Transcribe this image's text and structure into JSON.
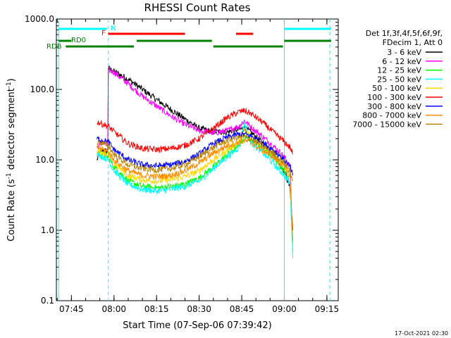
{
  "chart_data": {
    "type": "line",
    "title": "RHESSI Count Rates",
    "xlabel": "Start Time (07-Sep-06 07:39:42)",
    "ylabel_main": "Count Rate (s",
    "ylabel_sup": "-1",
    "ylabel_tail": " detector segment",
    "ylabel_sup2": "-1",
    "ylabel_end": ")",
    "y_scale": "log",
    "ylim": [
      0.1,
      1000.0
    ],
    "xlim": [
      "07:39:42",
      "09:19:00"
    ],
    "x_ticks": [
      "07:45",
      "08:00",
      "08:15",
      "08:30",
      "08:45",
      "09:00",
      "09:15"
    ],
    "y_ticks": [
      "0.1",
      "1.0",
      "10.0",
      "100.0",
      "1000.0"
    ],
    "legend_header": [
      "Det 1f,3f,4f,5f,6f,9f,",
      "FDecim 1, Att 0"
    ],
    "legend_position": "right",
    "timestamp": "17-Oct-2021 02:30",
    "series": [
      {
        "name": "3 - 6 keV",
        "color": "#000000",
        "x": [
          "07:54:00",
          "07:56:00",
          "07:57:30",
          "07:58:00",
          "08:00:00",
          "08:05:00",
          "08:10:00",
          "08:15:00",
          "08:20:00",
          "08:25:00",
          "08:30:00",
          "08:35:00",
          "08:40:00",
          "08:44:00",
          "08:46:00",
          "08:48:00",
          "08:52:00",
          "08:56:00",
          "09:00:00",
          "09:02:00",
          "09:03:00"
        ],
        "y": [
          10.0,
          14.0,
          13.0,
          200.0,
          180.0,
          140.0,
          100.0,
          72.0,
          52.0,
          38.0,
          28.0,
          25.0,
          25.0,
          27.0,
          28.0,
          25.0,
          18.0,
          12.0,
          7.0,
          4.0,
          1.0
        ]
      },
      {
        "name": "6 - 12 keV",
        "color": "#ff00ff",
        "x": [
          "07:54:00",
          "07:56:00",
          "07:57:30",
          "07:58:00",
          "08:00:00",
          "08:05:00",
          "08:10:00",
          "08:15:00",
          "08:20:00",
          "08:25:00",
          "08:30:00",
          "08:35:00",
          "08:40:00",
          "08:44:00",
          "08:46:00",
          "08:48:00",
          "08:52:00",
          "08:56:00",
          "09:00:00",
          "09:02:00",
          "09:03:00"
        ],
        "y": [
          15.0,
          18.0,
          16.0,
          190.0,
          175.0,
          120.0,
          80.0,
          58.0,
          42.0,
          32.0,
          26.0,
          24.0,
          26.0,
          30.0,
          36.0,
          30.0,
          22.0,
          16.0,
          11.0,
          8.0,
          0.6
        ]
      },
      {
        "name": "12 - 25 keV",
        "color": "#00ff00",
        "x": [
          "07:54:00",
          "07:56:00",
          "07:58:00",
          "08:00:00",
          "08:05:00",
          "08:10:00",
          "08:15:00",
          "08:20:00",
          "08:25:00",
          "08:30:00",
          "08:35:00",
          "08:40:00",
          "08:44:00",
          "08:46:00",
          "08:48:00",
          "08:52:00",
          "08:56:00",
          "09:00:00",
          "09:02:00",
          "09:03:00"
        ],
        "y": [
          13.0,
          12.0,
          11.0,
          8.0,
          5.0,
          4.2,
          4.0,
          4.2,
          4.5,
          5.5,
          8.0,
          12.0,
          16.0,
          22.0,
          20.0,
          15.0,
          11.0,
          7.0,
          5.0,
          0.5
        ]
      },
      {
        "name": "25 - 50 keV",
        "color": "#00ffff",
        "x": [
          "07:54:00",
          "07:56:00",
          "07:58:00",
          "08:00:00",
          "08:05:00",
          "08:10:00",
          "08:15:00",
          "08:20:00",
          "08:25:00",
          "08:30:00",
          "08:35:00",
          "08:40:00",
          "08:44:00",
          "08:46:00",
          "08:48:00",
          "08:52:00",
          "08:56:00",
          "09:00:00",
          "09:02:00",
          "09:03:00"
        ],
        "y": [
          12.0,
          11.0,
          10.0,
          7.0,
          4.5,
          3.8,
          3.6,
          3.8,
          4.2,
          5.0,
          7.5,
          11.0,
          15.0,
          34.0,
          18.0,
          13.0,
          9.0,
          6.0,
          4.5,
          0.4
        ]
      },
      {
        "name": "50 - 100 keV",
        "color": "#ffd700",
        "x": [
          "07:54:00",
          "07:56:00",
          "07:58:00",
          "08:00:00",
          "08:05:00",
          "08:10:00",
          "08:15:00",
          "08:20:00",
          "08:25:00",
          "08:30:00",
          "08:35:00",
          "08:40:00",
          "08:44:00",
          "08:46:00",
          "08:48:00",
          "08:52:00",
          "08:56:00",
          "09:00:00",
          "09:02:00",
          "09:03:00"
        ],
        "y": [
          14.0,
          13.0,
          12.0,
          9.0,
          6.0,
          5.2,
          5.0,
          5.2,
          5.8,
          7.0,
          10.0,
          14.0,
          18.0,
          26.0,
          22.0,
          16.0,
          12.0,
          8.0,
          6.0,
          0.6
        ]
      },
      {
        "name": "100 - 300 keV",
        "color": "#ff0000",
        "x": [
          "07:54:00",
          "07:56:00",
          "07:58:00",
          "08:00:00",
          "08:05:00",
          "08:10:00",
          "08:15:00",
          "08:20:00",
          "08:25:00",
          "08:30:00",
          "08:35:00",
          "08:40:00",
          "08:44:00",
          "08:46:00",
          "08:48:00",
          "08:52:00",
          "08:56:00",
          "09:00:00",
          "09:02:00",
          "09:03:00"
        ],
        "y": [
          35.0,
          32.0,
          30.0,
          25.0,
          17.0,
          14.5,
          14.0,
          14.5,
          16.0,
          20.0,
          28.0,
          40.0,
          48.0,
          50.0,
          46.0,
          35.0,
          25.0,
          18.0,
          15.0,
          12.0
        ]
      },
      {
        "name": "300 - 800 keV",
        "color": "#0000ff",
        "x": [
          "07:54:00",
          "07:56:00",
          "07:58:00",
          "08:00:00",
          "08:05:00",
          "08:10:00",
          "08:15:00",
          "08:20:00",
          "08:25:00",
          "08:30:00",
          "08:35:00",
          "08:40:00",
          "08:44:00",
          "08:46:00",
          "08:48:00",
          "08:52:00",
          "08:56:00",
          "09:00:00",
          "09:02:00",
          "09:03:00"
        ],
        "y": [
          20.0,
          19.0,
          18.0,
          14.0,
          10.0,
          8.5,
          8.2,
          8.5,
          9.5,
          12.0,
          17.0,
          21.0,
          23.0,
          23.0,
          22.0,
          18.0,
          14.0,
          10.0,
          8.0,
          6.0
        ]
      },
      {
        "name": "800 - 7000 keV",
        "color": "#ff8c00",
        "x": [
          "07:54:00",
          "07:56:00",
          "07:58:00",
          "08:00:00",
          "08:05:00",
          "08:10:00",
          "08:15:00",
          "08:20:00",
          "08:25:00",
          "08:30:00",
          "08:35:00",
          "08:40:00",
          "08:44:00",
          "08:46:00",
          "08:48:00",
          "08:52:00",
          "08:56:00",
          "09:00:00",
          "09:02:00",
          "09:03:00"
        ],
        "y": [
          15.0,
          14.0,
          13.0,
          10.0,
          7.0,
          6.0,
          5.8,
          6.0,
          7.0,
          9.0,
          12.5,
          16.0,
          18.0,
          18.5,
          18.0,
          14.0,
          11.0,
          8.0,
          6.0,
          0.7
        ]
      },
      {
        "name": "7000 - 15000 keV",
        "color": "#b8860b",
        "x": [
          "07:54:00",
          "07:56:00",
          "07:58:00",
          "08:00:00",
          "08:05:00",
          "08:10:00",
          "08:15:00",
          "08:20:00",
          "08:25:00",
          "08:30:00",
          "08:35:00",
          "08:40:00",
          "08:44:00",
          "08:46:00",
          "08:48:00",
          "08:52:00",
          "08:56:00",
          "09:00:00",
          "09:02:00",
          "09:03:00"
        ],
        "y": [
          18.0,
          17.0,
          16.0,
          12.0,
          8.5,
          7.5,
          7.2,
          7.5,
          8.5,
          11.0,
          15.0,
          19.0,
          21.0,
          21.0,
          20.0,
          16.0,
          12.5,
          9.0,
          7.0,
          5.0
        ]
      }
    ],
    "vertical_markers": [
      {
        "time": "07:40:30",
        "style": "solid",
        "color": "#00ffff"
      },
      {
        "time": "07:58:00",
        "style": "dashed",
        "color": "#00ffff"
      },
      {
        "time": "09:00:00",
        "style": "solid",
        "color": "#00ffff"
      },
      {
        "time": "09:16:00",
        "style": "dashed",
        "color": "#00ffff"
      }
    ],
    "flag_bars": [
      {
        "label": "N",
        "color": "#00ffff",
        "segments": [
          [
            "07:40:30",
            "07:57:30"
          ],
          [
            "09:00:00",
            "09:16:30"
          ]
        ]
      },
      {
        "label": "F",
        "color": "#ff0000",
        "segments": [
          [
            "07:58:00",
            "08:25:00"
          ],
          [
            "08:43:00",
            "08:49:00"
          ]
        ]
      },
      {
        "label": "RD0",
        "color": "#008000",
        "segments": [
          [
            "07:40:30",
            "07:45:00"
          ],
          [
            "08:08:00",
            "08:34:30"
          ],
          [
            "09:00:00",
            "09:16:30"
          ]
        ]
      },
      {
        "label": "RDB",
        "color": "#008000",
        "segments": [
          [
            "07:43:00",
            "08:07:00"
          ],
          [
            "08:35:00",
            "08:59:30"
          ]
        ]
      }
    ]
  }
}
